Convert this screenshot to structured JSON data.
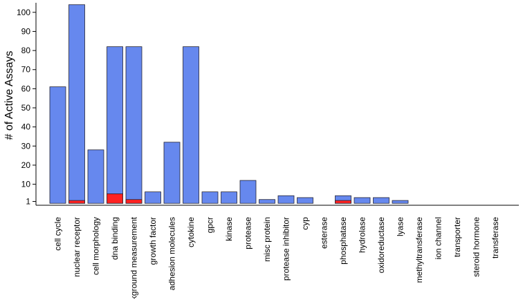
{
  "chart_data": {
    "type": "bar",
    "ylabel": "# of Active Assays",
    "xlabel": "",
    "ylim": [
      -1,
      105
    ],
    "yticks": [
      1,
      10,
      20,
      30,
      40,
      50,
      60,
      70,
      80,
      90,
      100
    ],
    "grid": false,
    "legend": "none",
    "categories": [
      "cell cycle",
      "nuclear receptor",
      "cell morphology",
      "dna binding",
      "background measurement",
      "growth factor",
      "adhesion molecules",
      "cytokine",
      "gpcr",
      "kinase",
      "protease",
      "misc protein",
      "protease inhibitor",
      "cyp",
      "esterase",
      "phosphatase",
      "hydrolase",
      "oxidoreductase",
      "lyase",
      "methyltransferase",
      "ion channel",
      "transporter",
      "steroid hormone",
      "transferase"
    ],
    "series": [
      {
        "color": "#6688ee",
        "values": [
          61,
          104,
          28,
          82,
          82,
          6,
          32,
          82,
          6,
          6,
          12,
          2,
          4,
          3,
          0,
          4,
          3,
          3,
          1.5,
          0,
          0,
          0,
          0,
          0
        ]
      },
      {
        "color": "#ff2222",
        "values": [
          0,
          1.5,
          0,
          5,
          2,
          0,
          0,
          0,
          0,
          0,
          0,
          0,
          0,
          0,
          0,
          1.5,
          0,
          0,
          0,
          0,
          0,
          0,
          0,
          0
        ]
      }
    ],
    "colors": {
      "bar_stroke": "#222233",
      "axis": "#000000"
    }
  }
}
